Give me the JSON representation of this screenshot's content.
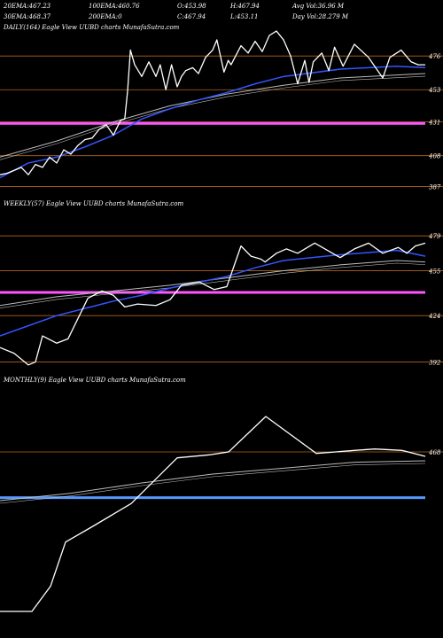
{
  "header": {
    "row1": [
      {
        "label": "20EMA:",
        "value": "467.23"
      },
      {
        "label": "100EMA:",
        "value": "460.76"
      },
      {
        "label": "O:",
        "value": "453.98"
      },
      {
        "label": "H:",
        "value": "467.94"
      },
      {
        "label": "Avg Vol:",
        "value": "36.96  M"
      }
    ],
    "row2": [
      {
        "label": "30EMA:",
        "value": "468.37"
      },
      {
        "label": "200EMA:",
        "value": "0"
      },
      {
        "label": "C:",
        "value": "467.94"
      },
      {
        "label": "L:",
        "value": "453.11"
      },
      {
        "label": "Day Vol:",
        "value": "28.279  M"
      }
    ]
  },
  "colors": {
    "background": "#000000",
    "price": "#ffffff",
    "ema_blue": "#3355ff",
    "ema_gray": "#bbbbbb",
    "grid": "#b5651d",
    "level_pink": "#ff55ff",
    "level_blue": "#5599ff"
  },
  "chart_data": [
    {
      "type": "line",
      "title": "DAILY(164) Eagle  View  UUBD charts MunafaSutra.com",
      "grid": true,
      "ylim": [
        380,
        490
      ],
      "levels": [
        476,
        453,
        431,
        408,
        387
      ],
      "level_labels": [
        "476",
        "453",
        "431",
        "408",
        "387"
      ],
      "highlight_level": 430,
      "x_count": 164,
      "price_anchors": [
        [
          0,
          395
        ],
        [
          5,
          396
        ],
        [
          10,
          398
        ],
        [
          15,
          400
        ],
        [
          20,
          395
        ],
        [
          25,
          402
        ],
        [
          30,
          400
        ],
        [
          35,
          407
        ],
        [
          40,
          403
        ],
        [
          45,
          412
        ],
        [
          50,
          409
        ],
        [
          55,
          415
        ],
        [
          60,
          419
        ],
        [
          65,
          420
        ],
        [
          70,
          426
        ],
        [
          75,
          429
        ],
        [
          80,
          422
        ],
        [
          85,
          432
        ],
        [
          88,
          433
        ],
        [
          90,
          452
        ],
        [
          92,
          480
        ],
        [
          95,
          470
        ],
        [
          100,
          462
        ],
        [
          105,
          472
        ],
        [
          110,
          462
        ],
        [
          113,
          470
        ],
        [
          117,
          453
        ],
        [
          121,
          470
        ],
        [
          125,
          455
        ],
        [
          128,
          462
        ],
        [
          131,
          466
        ],
        [
          136,
          468
        ],
        [
          140,
          464
        ],
        [
          145,
          475
        ],
        [
          150,
          480
        ],
        [
          153,
          487
        ],
        [
          158,
          465
        ],
        [
          161,
          473
        ],
        [
          163,
          470
        ],
        [
          170,
          483
        ],
        [
          175,
          478
        ],
        [
          180,
          486
        ],
        [
          185,
          479
        ],
        [
          190,
          490
        ],
        [
          195,
          493
        ],
        [
          200,
          487
        ],
        [
          205,
          476
        ],
        [
          210,
          457
        ],
        [
          215,
          473
        ],
        [
          218,
          458
        ],
        [
          221,
          472
        ],
        [
          227,
          478
        ],
        [
          232,
          466
        ],
        [
          236,
          482
        ],
        [
          242,
          469
        ],
        [
          250,
          484
        ],
        [
          260,
          475
        ],
        [
          270,
          461
        ],
        [
          275,
          475
        ],
        [
          283,
          480
        ],
        [
          290,
          472
        ],
        [
          295,
          470
        ],
        [
          300,
          470
        ]
      ],
      "ema_blue_anchors": [
        [
          0,
          393
        ],
        [
          20,
          403
        ],
        [
          40,
          407
        ],
        [
          60,
          414
        ],
        [
          80,
          422
        ],
        [
          100,
          433
        ],
        [
          120,
          440
        ],
        [
          140,
          446
        ],
        [
          160,
          451
        ],
        [
          180,
          457
        ],
        [
          200,
          462
        ],
        [
          240,
          467
        ],
        [
          280,
          469
        ],
        [
          300,
          468
        ]
      ],
      "ema_gray_anchors": [
        [
          0,
          407
        ],
        [
          40,
          418
        ],
        [
          80,
          431
        ],
        [
          120,
          442
        ],
        [
          160,
          450
        ],
        [
          200,
          456
        ],
        [
          240,
          461
        ],
        [
          280,
          463
        ],
        [
          300,
          464
        ]
      ]
    },
    {
      "type": "line",
      "title": "WEEKLY(57) Eagle  View  UUBD charts MunafaSutra.com",
      "grid": true,
      "ylim": [
        385,
        495
      ],
      "levels": [
        479,
        455,
        424,
        392
      ],
      "level_labels": [
        "479",
        "455",
        "424",
        "392"
      ],
      "highlight_level": 440,
      "x_count": 57,
      "price_anchors": [
        [
          0,
          402
        ],
        [
          10,
          398
        ],
        [
          20,
          390
        ],
        [
          25,
          392
        ],
        [
          30,
          410
        ],
        [
          40,
          405
        ],
        [
          48,
          408
        ],
        [
          55,
          422
        ],
        [
          62,
          436
        ],
        [
          72,
          441
        ],
        [
          80,
          438
        ],
        [
          88,
          430
        ],
        [
          97,
          432
        ],
        [
          110,
          431
        ],
        [
          120,
          435
        ],
        [
          128,
          445
        ],
        [
          141,
          447
        ],
        [
          151,
          442
        ],
        [
          160,
          444
        ],
        [
          170,
          472
        ],
        [
          177,
          465
        ],
        [
          184,
          463
        ],
        [
          187,
          461
        ],
        [
          195,
          467
        ],
        [
          202,
          470
        ],
        [
          210,
          467
        ],
        [
          222,
          474
        ],
        [
          240,
          464
        ],
        [
          250,
          470
        ],
        [
          260,
          474
        ],
        [
          270,
          467
        ],
        [
          281,
          471
        ],
        [
          287,
          467
        ],
        [
          293,
          472
        ],
        [
          300,
          474
        ]
      ],
      "ema_blue_anchors": [
        [
          0,
          410
        ],
        [
          20,
          417
        ],
        [
          40,
          424
        ],
        [
          60,
          429
        ],
        [
          80,
          434
        ],
        [
          100,
          438
        ],
        [
          120,
          443
        ],
        [
          140,
          447
        ],
        [
          160,
          451
        ],
        [
          180,
          457
        ],
        [
          200,
          462
        ],
        [
          240,
          466
        ],
        [
          280,
          469
        ],
        [
          300,
          465
        ]
      ],
      "ema_gray_anchors": [
        [
          0,
          431
        ],
        [
          40,
          437
        ],
        [
          80,
          441
        ],
        [
          120,
          445
        ],
        [
          160,
          450
        ],
        [
          200,
          455
        ],
        [
          240,
          459
        ],
        [
          280,
          462
        ],
        [
          300,
          461
        ]
      ]
    },
    {
      "type": "line",
      "title": "MONTHLY(9) Eagle  View  UUBD charts MunafaSutra.com",
      "grid": true,
      "ylim": [
        360,
        510
      ],
      "levels": [
        468
      ],
      "level_labels": [
        "468"
      ],
      "highlight_level": 437,
      "x_count": 9,
      "price_anchors": [
        [
          0,
          360
        ],
        [
          36,
          360
        ],
        [
          57,
          377
        ],
        [
          74,
          407
        ],
        [
          103,
          417
        ],
        [
          148,
          433
        ],
        [
          200,
          464
        ],
        [
          236,
          466
        ],
        [
          258,
          468
        ],
        [
          300,
          492
        ],
        [
          357,
          467
        ],
        [
          400,
          469
        ],
        [
          423,
          470
        ],
        [
          454,
          469
        ],
        [
          480,
          465
        ]
      ],
      "ema_gray_anchors": [
        [
          0,
          435
        ],
        [
          80,
          440
        ],
        [
          160,
          447
        ],
        [
          240,
          453
        ],
        [
          320,
          457
        ],
        [
          400,
          461
        ],
        [
          480,
          462
        ]
      ]
    }
  ]
}
